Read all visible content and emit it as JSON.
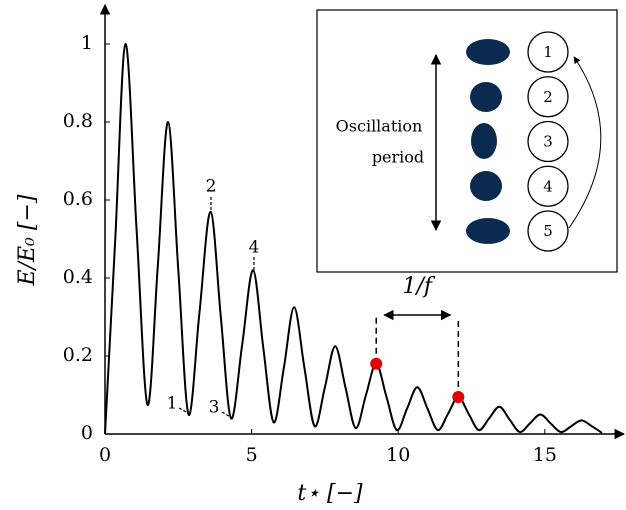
{
  "chart_data": {
    "type": "line",
    "xlabel": "t⋆ [−]",
    "ylabel": "E/E₀ [−]",
    "xlim": [
      0,
      17.7
    ],
    "ylim": [
      0,
      1.1
    ],
    "xticks": [
      0,
      5,
      10,
      15
    ],
    "yticks": [
      0,
      {
        "value": 0.2,
        "label": "0.2"
      },
      {
        "value": 0.4,
        "label": "0.4"
      },
      {
        "value": 0.6,
        "label": "0.6"
      },
      {
        "value": 0.8,
        "label": "0.8"
      },
      1
    ],
    "grid": false,
    "series": [
      {
        "color": "#000000",
        "x": [
          0,
          0.35,
          0.7,
          1.08,
          1.45,
          1.8,
          2.15,
          2.5,
          2.85,
          3.22,
          3.6,
          3.95,
          4.3,
          4.68,
          5.05,
          5.4,
          5.75,
          6.1,
          6.45,
          6.8,
          7.15,
          7.5,
          7.85,
          8.2,
          8.55,
          8.9,
          9.25,
          9.6,
          9.95,
          10.3,
          10.65,
          11.0,
          11.35,
          11.7,
          12.05,
          12.4,
          12.75,
          13.1,
          13.45,
          13.8,
          14.15,
          14.5,
          14.85,
          15.2,
          15.55,
          15.9,
          16.25,
          16.6,
          16.95
        ],
        "values": [
          0,
          0.5,
          1.0,
          0.52,
          0.075,
          0.43,
          0.8,
          0.42,
          0.05,
          0.31,
          0.57,
          0.3,
          0.04,
          0.23,
          0.42,
          0.22,
          0.03,
          0.17,
          0.325,
          0.17,
          0.02,
          0.12,
          0.225,
          0.12,
          0.015,
          0.1,
          0.18,
          0.095,
          0.01,
          0.065,
          0.12,
          0.065,
          0.01,
          0.052,
          0.095,
          0.052,
          0.01,
          0.04,
          0.07,
          0.037,
          0.005,
          0.028,
          0.05,
          0.027,
          0.005,
          0.02,
          0.035,
          0.02,
          0.003
        ]
      },
      {
        "color": "#e00000",
        "x": [
          9.25,
          12.05
        ],
        "values": [
          0.18,
          0.095
        ]
      }
    ],
    "annotations": [
      "1",
      "2",
      "3",
      "4",
      "1/f"
    ],
    "inset": {
      "label": [
        "Oscillation",
        "period"
      ],
      "numbers": [
        "1",
        "2",
        "3",
        "4",
        "5"
      ]
    }
  }
}
